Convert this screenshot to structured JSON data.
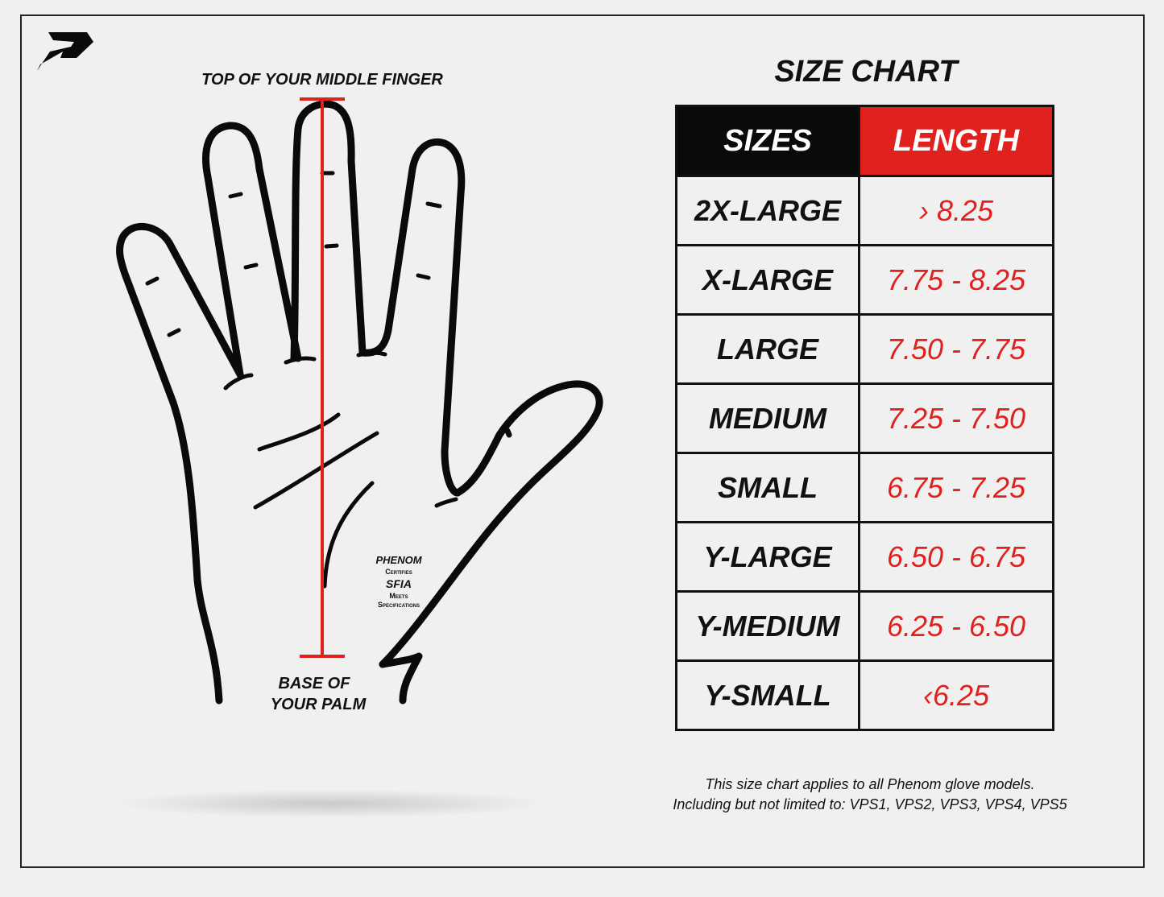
{
  "brand": {
    "name": "PHENOM"
  },
  "hand_diagram": {
    "top_label": "TOP OF YOUR MIDDLE FINGER",
    "bottom_label_line1": "BASE OF",
    "bottom_label_line2": "YOUR PALM",
    "measure_color": "#e0211d",
    "certification": {
      "brand": "PHENOM",
      "line1": "Certifies",
      "org": "SFIA",
      "line2": "Meets",
      "line3": "Specifications"
    }
  },
  "size_chart": {
    "title": "SIZE CHART",
    "headers": {
      "sizes": "SIZES",
      "length": "LENGTH"
    },
    "header_colors": {
      "sizes": "#0a0a0a",
      "length": "#e0211d"
    },
    "rows": [
      {
        "size": "2X-LARGE",
        "length": "› 8.25"
      },
      {
        "size": "X-LARGE",
        "length": "7.75 - 8.25"
      },
      {
        "size": "LARGE",
        "length": "7.50 - 7.75"
      },
      {
        "size": "MEDIUM",
        "length": "7.25 - 7.50"
      },
      {
        "size": "SMALL",
        "length": "6.75 - 7.25"
      },
      {
        "size": "Y-LARGE",
        "length": "6.50 - 6.75"
      },
      {
        "size": "Y-MEDIUM",
        "length": "6.25 - 6.50"
      },
      {
        "size": "Y-SMALL",
        "length": "‹6.25"
      }
    ],
    "note_line1": "This size chart applies to all Phenom glove models.",
    "note_line2": "Including but not limited to: VPS1, VPS2, VPS3, VPS4, VPS5"
  }
}
